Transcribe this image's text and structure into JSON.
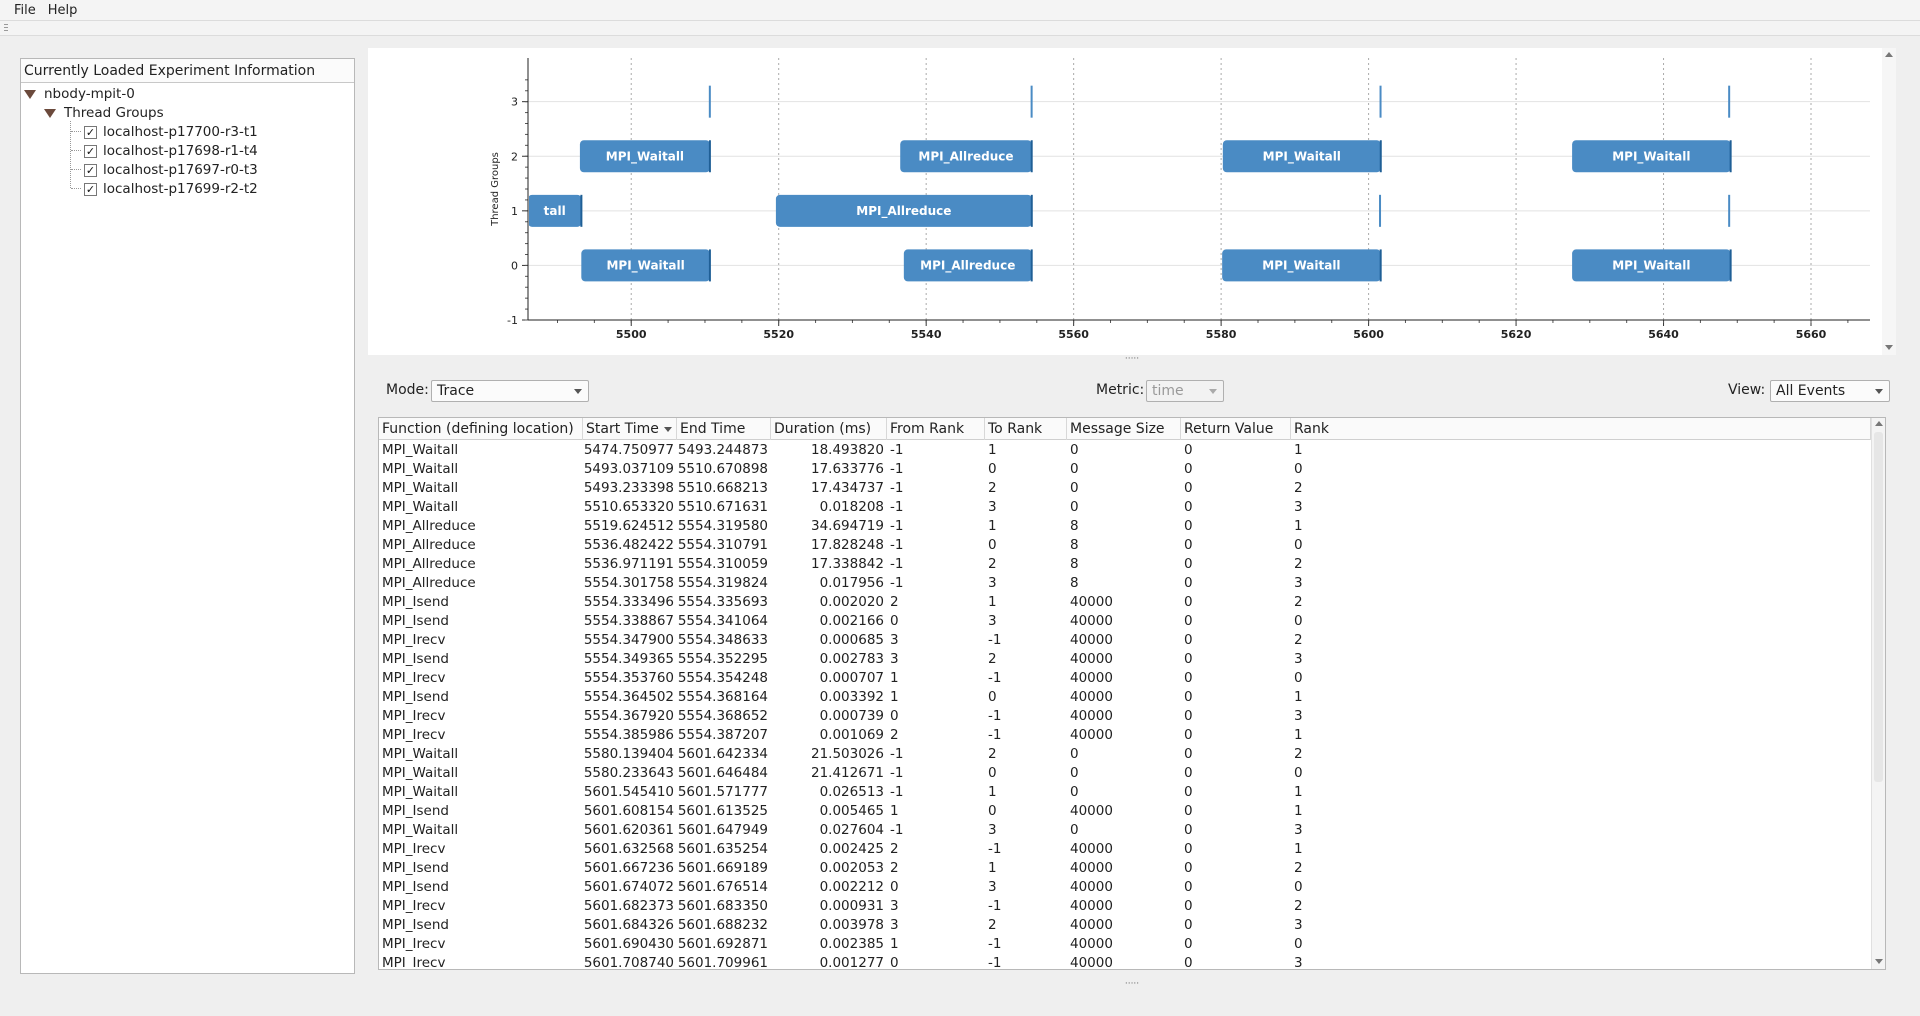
{
  "menu": {
    "file": "File",
    "help": "Help"
  },
  "experiment_panel": {
    "title": "Currently Loaded Experiment Information",
    "root": "nbody-mpit-0",
    "group": "Thread Groups",
    "threads": [
      {
        "label": "localhost-p17700-r3-t1",
        "checked": "✓"
      },
      {
        "label": "localhost-p17698-r1-t4",
        "checked": "✓"
      },
      {
        "label": "localhost-p17697-r0-t3",
        "checked": "✓"
      },
      {
        "label": "localhost-p17699-r2-t2",
        "checked": "✓"
      }
    ]
  },
  "chart_data": {
    "type": "timeline",
    "ylabel": "Thread Groups",
    "xlim": [
      5486,
      5668
    ],
    "ylim": [
      -1,
      3.8
    ],
    "x_ticks": [
      5500,
      5520,
      5540,
      5560,
      5580,
      5600,
      5620,
      5640,
      5660
    ],
    "y_ticks": [
      -1,
      0,
      1,
      2,
      3
    ],
    "bar_color": "#4a8bc4",
    "bars": [
      {
        "group": 2,
        "start": 5493.04,
        "end": 5510.67,
        "label": "MPI_Waitall"
      },
      {
        "group": 2,
        "start": 5536.48,
        "end": 5554.31,
        "label": "MPI_Allreduce"
      },
      {
        "group": 2,
        "start": 5580.23,
        "end": 5601.65,
        "label": "MPI_Waitall"
      },
      {
        "group": 2,
        "start": 5627.6,
        "end": 5649.1,
        "label": "MPI_Waitall"
      },
      {
        "group": 1,
        "start": 5486,
        "end": 5493.24,
        "label": "tall"
      },
      {
        "group": 1,
        "start": 5519.62,
        "end": 5554.32,
        "label": "MPI_Allreduce"
      },
      {
        "group": 0,
        "start": 5493.23,
        "end": 5510.67,
        "label": "MPI_Waitall"
      },
      {
        "group": 0,
        "start": 5536.97,
        "end": 5554.31,
        "label": "MPI_Allreduce"
      },
      {
        "group": 0,
        "start": 5580.14,
        "end": 5601.64,
        "label": "MPI_Waitall"
      },
      {
        "group": 0,
        "start": 5627.6,
        "end": 5649.1,
        "label": "MPI_Waitall"
      }
    ],
    "markers": [
      {
        "group": 3,
        "at": 5510.66
      },
      {
        "group": 3,
        "at": 5554.3
      },
      {
        "group": 3,
        "at": 5601.62
      },
      {
        "group": 3,
        "at": 5648.9
      },
      {
        "group": 1,
        "at": 5601.55
      },
      {
        "group": 1,
        "at": 5648.9
      }
    ]
  },
  "controls": {
    "mode_label": "Mode:",
    "mode_value": "Trace",
    "metric_label": "Metric:",
    "metric_value": "time",
    "view_label": "View:",
    "view_value": "All Events"
  },
  "table": {
    "columns": [
      "Function (defining location)",
      "Start Time",
      "End Time",
      "Duration (ms)",
      "From Rank",
      "To Rank",
      "Message Size",
      "Return Value",
      "Rank"
    ],
    "rows": [
      [
        "MPI_Waitall",
        "5474.750977",
        "5493.244873",
        "18.493820",
        "-1",
        "1",
        "0",
        "0",
        "1"
      ],
      [
        "MPI_Waitall",
        "5493.037109",
        "5510.670898",
        "17.633776",
        "-1",
        "0",
        "0",
        "0",
        "0"
      ],
      [
        "MPI_Waitall",
        "5493.233398",
        "5510.668213",
        "17.434737",
        "-1",
        "2",
        "0",
        "0",
        "2"
      ],
      [
        "MPI_Waitall",
        "5510.653320",
        "5510.671631",
        "0.018208",
        "-1",
        "3",
        "0",
        "0",
        "3"
      ],
      [
        "MPI_Allreduce",
        "5519.624512",
        "5554.319580",
        "34.694719",
        "-1",
        "1",
        "8",
        "0",
        "1"
      ],
      [
        "MPI_Allreduce",
        "5536.482422",
        "5554.310791",
        "17.828248",
        "-1",
        "0",
        "8",
        "0",
        "0"
      ],
      [
        "MPI_Allreduce",
        "5536.971191",
        "5554.310059",
        "17.338842",
        "-1",
        "2",
        "8",
        "0",
        "2"
      ],
      [
        "MPI_Allreduce",
        "5554.301758",
        "5554.319824",
        "0.017956",
        "-1",
        "3",
        "8",
        "0",
        "3"
      ],
      [
        "MPI_Isend",
        "5554.333496",
        "5554.335693",
        "0.002020",
        "2",
        "1",
        "40000",
        "0",
        "2"
      ],
      [
        "MPI_Isend",
        "5554.338867",
        "5554.341064",
        "0.002166",
        "0",
        "3",
        "40000",
        "0",
        "0"
      ],
      [
        "MPI_Irecv",
        "5554.347900",
        "5554.348633",
        "0.000685",
        "3",
        "-1",
        "40000",
        "0",
        "2"
      ],
      [
        "MPI_Isend",
        "5554.349365",
        "5554.352295",
        "0.002783",
        "3",
        "2",
        "40000",
        "0",
        "3"
      ],
      [
        "MPI_Irecv",
        "5554.353760",
        "5554.354248",
        "0.000707",
        "1",
        "-1",
        "40000",
        "0",
        "0"
      ],
      [
        "MPI_Isend",
        "5554.364502",
        "5554.368164",
        "0.003392",
        "1",
        "0",
        "40000",
        "0",
        "1"
      ],
      [
        "MPI_Irecv",
        "5554.367920",
        "5554.368652",
        "0.000739",
        "0",
        "-1",
        "40000",
        "0",
        "3"
      ],
      [
        "MPI_Irecv",
        "5554.385986",
        "5554.387207",
        "0.001069",
        "2",
        "-1",
        "40000",
        "0",
        "1"
      ],
      [
        "MPI_Waitall",
        "5580.139404",
        "5601.642334",
        "21.503026",
        "-1",
        "2",
        "0",
        "0",
        "2"
      ],
      [
        "MPI_Waitall",
        "5580.233643",
        "5601.646484",
        "21.412671",
        "-1",
        "0",
        "0",
        "0",
        "0"
      ],
      [
        "MPI_Waitall",
        "5601.545410",
        "5601.571777",
        "0.026513",
        "-1",
        "1",
        "0",
        "0",
        "1"
      ],
      [
        "MPI_Isend",
        "5601.608154",
        "5601.613525",
        "0.005465",
        "1",
        "0",
        "40000",
        "0",
        "1"
      ],
      [
        "MPI_Waitall",
        "5601.620361",
        "5601.647949",
        "0.027604",
        "-1",
        "3",
        "0",
        "0",
        "3"
      ],
      [
        "MPI_Irecv",
        "5601.632568",
        "5601.635254",
        "0.002425",
        "2",
        "-1",
        "40000",
        "0",
        "1"
      ],
      [
        "MPI_Isend",
        "5601.667236",
        "5601.669189",
        "0.002053",
        "2",
        "1",
        "40000",
        "0",
        "2"
      ],
      [
        "MPI_Isend",
        "5601.674072",
        "5601.676514",
        "0.002212",
        "0",
        "3",
        "40000",
        "0",
        "0"
      ],
      [
        "MPI_Irecv",
        "5601.682373",
        "5601.683350",
        "0.000931",
        "3",
        "-1",
        "40000",
        "0",
        "2"
      ],
      [
        "MPI_Isend",
        "5601.684326",
        "5601.688232",
        "0.003978",
        "3",
        "2",
        "40000",
        "0",
        "3"
      ],
      [
        "MPI_Irecv",
        "5601.690430",
        "5601.692871",
        "0.002385",
        "1",
        "-1",
        "40000",
        "0",
        "0"
      ],
      [
        "MPI_Irecv",
        "5601.708740",
        "5601.709961",
        "0.001277",
        "0",
        "-1",
        "40000",
        "0",
        "3"
      ]
    ]
  }
}
